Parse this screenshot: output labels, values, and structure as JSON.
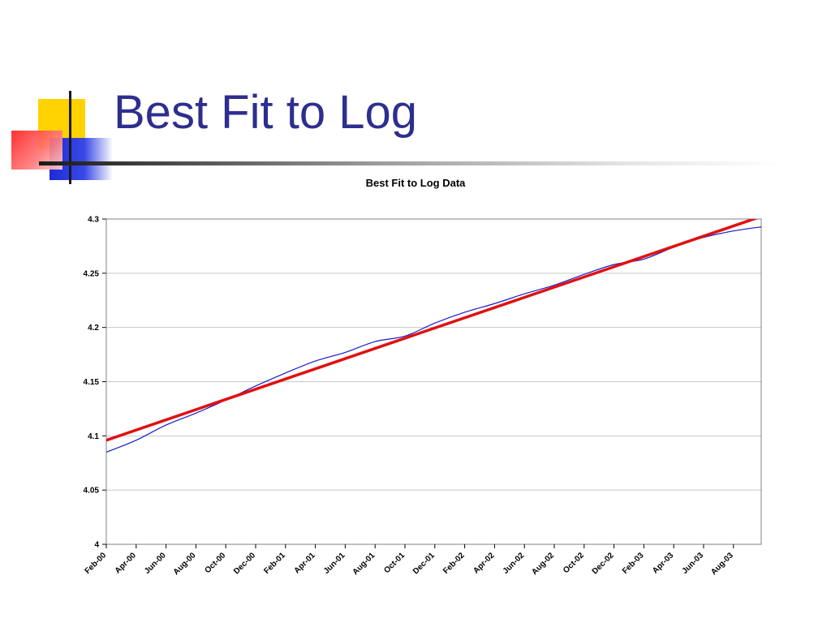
{
  "slide": {
    "title": "Best Fit to Log"
  },
  "chart_data": {
    "type": "line",
    "title": "Best Fit to Log Data",
    "xlabel": "",
    "ylabel": "",
    "ylim": [
      4,
      4.3
    ],
    "y_ticks": [
      "4",
      "4.05",
      "4.1",
      "4.15",
      "4.2",
      "4.25",
      "4.3"
    ],
    "x_ticks": [
      "Feb-00",
      "Apr-00",
      "Jun-00",
      "Aug-00",
      "Oct-00",
      "Dec-00",
      "Feb-01",
      "Apr-01",
      "Jun-01",
      "Aug-01",
      "Oct-01",
      "Dec-01",
      "Feb-02",
      "Apr-02",
      "Jun-02",
      "Aug-02",
      "Oct-02",
      "Dec-02",
      "Feb-03",
      "Apr-03",
      "Jun-03",
      "Aug-03"
    ],
    "grid": true,
    "legend": "none",
    "series": [
      {
        "color": "#1a1acc",
        "x": [
          "Feb-00",
          "Apr-00",
          "Jun-00",
          "Aug-00",
          "Oct-00",
          "Dec-00",
          "Feb-01",
          "Apr-01",
          "Jun-01",
          "Aug-01",
          "Oct-01",
          "Dec-01",
          "Feb-02",
          "Apr-02",
          "Jun-02",
          "Aug-02",
          "Oct-02",
          "Dec-02",
          "Feb-03",
          "Apr-03",
          "Jun-03",
          "Aug-03",
          "Oct-03"
        ],
        "values": [
          4.085,
          4.096,
          4.11,
          4.121,
          4.133,
          4.146,
          4.158,
          4.169,
          4.177,
          4.187,
          4.192,
          4.204,
          4.214,
          4.222,
          4.231,
          4.239,
          4.249,
          4.258,
          4.263,
          4.274,
          4.283,
          4.289,
          4.293
        ]
      },
      {
        "color": "#e01010",
        "x": [
          "Feb-00",
          "Oct-03"
        ],
        "values": [
          4.096,
          4.303
        ]
      }
    ]
  }
}
